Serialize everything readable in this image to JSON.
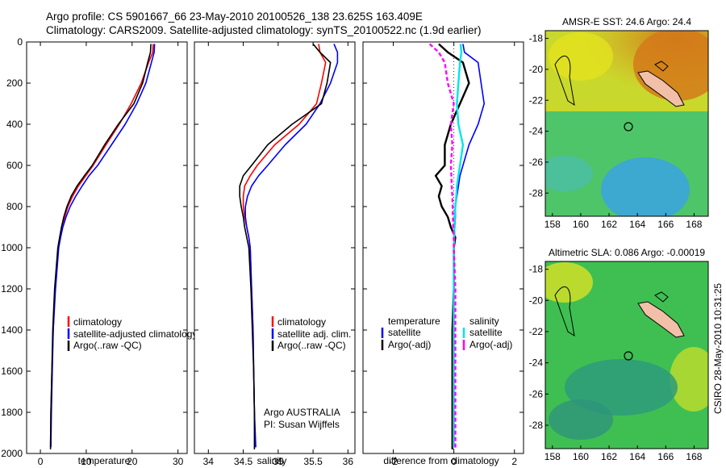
{
  "header": {
    "title_line1": "Argo profile: CS 5901667_66 23-May-2010 20100526_138 23.625S 163.409E",
    "title_line2": "Climatology: CARS2009. Satellite-adjusted climatology: synTS_20100522.nc (1.9d earlier)"
  },
  "colors": {
    "climatology": "#ff0000",
    "satellite": "#0000ff",
    "argo": "#000000",
    "sal_satellite": "#00e6e6",
    "sal_argo": "#ff00ff",
    "land": "#f2bfa8"
  },
  "chart_data": [
    {
      "type": "line",
      "xlabel": "temperature",
      "ylabel": "",
      "xlim": [
        -3,
        32
      ],
      "ylim": [
        2000,
        0
      ],
      "x_ticks": [
        0,
        10,
        20,
        30
      ],
      "y_ticks": [
        0,
        200,
        400,
        600,
        800,
        1000,
        1200,
        1400,
        1600,
        1800,
        2000
      ],
      "legend": [
        "climatology",
        "satellite-adjusted climatology",
        "Argo(..raw -QC)"
      ],
      "series": [
        {
          "name": "climatology",
          "color": "#ff0000",
          "x": [
            24.6,
            24.5,
            23.6,
            22.0,
            19.8,
            17.2,
            14.3,
            11.5,
            9.9,
            8.3,
            7.0,
            6.0,
            5.3,
            4.7,
            4.3,
            3.9,
            3.2,
            2.8,
            2.5,
            2.3,
            2.2
          ],
          "y": [
            10,
            50,
            100,
            200,
            300,
            400,
            500,
            600,
            650,
            700,
            750,
            800,
            850,
            900,
            950,
            1000,
            1200,
            1400,
            1600,
            1800,
            1970
          ]
        },
        {
          "name": "satellite-adjusted climatology",
          "color": "#0000ff",
          "x": [
            24.9,
            24.8,
            24.2,
            23.0,
            21.0,
            18.5,
            15.5,
            12.5,
            10.6,
            9.1,
            7.7,
            6.5,
            5.6,
            4.9,
            4.4,
            4.0,
            3.3,
            2.8,
            2.6,
            2.4,
            2.3
          ],
          "y": [
            10,
            50,
            100,
            200,
            300,
            400,
            500,
            600,
            650,
            700,
            750,
            800,
            850,
            900,
            950,
            1000,
            1200,
            1400,
            1600,
            1800,
            1970
          ]
        },
        {
          "name": "Argo(..raw -QC)",
          "color": "#000000",
          "x": [
            24.1,
            24.0,
            23.4,
            22.3,
            20.4,
            17.0,
            14.0,
            11.3,
            9.6,
            8.0,
            6.7,
            5.8,
            5.1,
            4.6,
            4.2,
            3.8,
            3.1,
            2.7,
            2.5,
            2.3,
            2.2
          ],
          "y": [
            10,
            50,
            100,
            200,
            300,
            400,
            500,
            600,
            650,
            700,
            750,
            800,
            850,
            900,
            950,
            1000,
            1200,
            1400,
            1600,
            1800,
            1980
          ]
        }
      ]
    },
    {
      "type": "line",
      "xlabel": "salinity",
      "ylabel": "",
      "xlim": [
        33.8,
        36.1
      ],
      "ylim": [
        2000,
        0
      ],
      "x_ticks": [
        34,
        34.5,
        35,
        35.5,
        36
      ],
      "legend": [
        "climatology",
        "satellite adj. clim.",
        "Argo(..raw -QC)"
      ],
      "annotation": [
        "Argo AUSTRALIA",
        "PI: Susan Wijffels"
      ],
      "series": [
        {
          "name": "climatology",
          "color": "#ff0000",
          "x": [
            35.58,
            35.6,
            35.68,
            35.62,
            35.55,
            35.3,
            34.95,
            34.7,
            34.6,
            34.52,
            34.5,
            34.5,
            34.52,
            34.55,
            34.58,
            34.6,
            34.62,
            34.64,
            34.65,
            34.66,
            34.67
          ],
          "y": [
            10,
            50,
            100,
            200,
            300,
            400,
            500,
            600,
            650,
            700,
            750,
            800,
            850,
            900,
            950,
            1000,
            1200,
            1400,
            1600,
            1800,
            1970
          ]
        },
        {
          "name": "satellite adj. clim.",
          "color": "#0000ff",
          "x": [
            35.8,
            35.85,
            35.85,
            35.75,
            35.6,
            35.4,
            35.1,
            34.85,
            34.72,
            34.62,
            34.56,
            34.53,
            34.53,
            34.55,
            34.58,
            34.6,
            34.62,
            34.64,
            34.65,
            34.66,
            34.68
          ],
          "y": [
            10,
            50,
            100,
            200,
            300,
            400,
            500,
            600,
            650,
            700,
            750,
            800,
            850,
            900,
            950,
            1000,
            1200,
            1400,
            1600,
            1800,
            1970
          ]
        },
        {
          "name": "Argo(..raw -QC)",
          "color": "#000000",
          "x": [
            35.5,
            35.6,
            35.75,
            35.7,
            35.62,
            35.2,
            34.85,
            34.62,
            34.5,
            34.45,
            34.45,
            34.47,
            34.5,
            34.52,
            34.55,
            34.58,
            34.61,
            34.63,
            34.65,
            34.66,
            34.66
          ],
          "y": [
            10,
            50,
            100,
            200,
            300,
            400,
            500,
            600,
            650,
            700,
            750,
            800,
            850,
            900,
            950,
            1000,
            1200,
            1400,
            1600,
            1800,
            1980
          ]
        }
      ]
    },
    {
      "type": "line",
      "xlabel": "difference from climatology",
      "ylabel": "",
      "xlim": [
        -3,
        2.3
      ],
      "ylim": [
        2000,
        0
      ],
      "x_ticks": [
        -2,
        0,
        2
      ],
      "legend_groups": [
        {
          "title": "temperature",
          "items": [
            "satellite",
            "Argo(-adj)"
          ]
        },
        {
          "title": "salinity",
          "items": [
            "satellite",
            "Argo(-adj)"
          ]
        }
      ],
      "series": [
        {
          "name": "temperature satellite",
          "color": "#0000ff",
          "x": [
            0.3,
            0.35,
            0.8,
            0.9,
            1.0,
            0.8,
            0.5,
            0.3,
            0.2,
            0.15,
            0.1,
            0.05,
            0.05,
            0.03,
            0.02,
            0.0,
            0.0,
            0.0,
            -0.02,
            -0.02,
            -0.03
          ],
          "y": [
            10,
            50,
            100,
            200,
            300,
            400,
            500,
            600,
            650,
            700,
            750,
            800,
            850,
            900,
            950,
            1000,
            1200,
            1400,
            1600,
            1800,
            1970
          ]
        },
        {
          "name": "temperature Argo(-adj)",
          "color": "#000000",
          "x": [
            -0.5,
            -0.2,
            0.3,
            0.5,
            0.2,
            -0.1,
            -0.3,
            -0.3,
            -0.6,
            -0.4,
            -0.5,
            -0.4,
            -0.2,
            -0.1,
            0.05,
            0.0,
            0.0,
            -0.05,
            -0.05,
            -0.05,
            -0.05
          ],
          "y": [
            10,
            50,
            100,
            200,
            300,
            400,
            500,
            600,
            650,
            700,
            750,
            800,
            850,
            900,
            950,
            1000,
            1200,
            1400,
            1600,
            1800,
            1980
          ]
        },
        {
          "name": "salinity satellite",
          "color": "#00e6e6",
          "x": [
            0.22,
            0.25,
            0.2,
            0.15,
            0.1,
            0.15,
            0.3,
            0.2,
            0.15,
            0.1,
            0.08,
            0.05,
            0.03,
            0.02,
            0.01,
            0.0,
            0.0,
            0.0,
            0.0,
            0.0,
            0.0
          ],
          "y": [
            10,
            50,
            100,
            200,
            300,
            400,
            500,
            600,
            650,
            700,
            750,
            800,
            850,
            900,
            950,
            1000,
            1200,
            1400,
            1600,
            1800,
            1970
          ]
        },
        {
          "name": "salinity Argo(-adj)",
          "color": "#ff00ff",
          "x": [
            -0.8,
            -0.5,
            -0.3,
            -0.2,
            0.0,
            -0.1,
            -0.05,
            -0.1,
            -0.08,
            -0.07,
            -0.05,
            -0.04,
            -0.03,
            -0.02,
            0.0,
            0.0,
            0.05,
            0.05,
            0.05,
            0.05,
            0.05
          ],
          "y": [
            10,
            50,
            100,
            200,
            300,
            400,
            500,
            600,
            650,
            700,
            750,
            800,
            850,
            900,
            950,
            1000,
            1200,
            1400,
            1600,
            1800,
            1980
          ]
        }
      ]
    },
    {
      "type": "heatmap",
      "title": "AMSR-E SST: 24.6  Argo: 24.4",
      "xlim": [
        157.5,
        169
      ],
      "ylim": [
        -29.5,
        -17.5
      ],
      "x_ticks": [
        158,
        160,
        162,
        164,
        166,
        168
      ],
      "y_ticks": [
        -18,
        -20,
        -22,
        -24,
        -26,
        -28
      ],
      "profile_location": {
        "lon": 163.409,
        "lat": -23.625
      }
    },
    {
      "type": "heatmap",
      "title": "Altimetric SLA: 0.086  Argo: -0.00019",
      "xlim": [
        157.5,
        169
      ],
      "ylim": [
        -29.5,
        -17.5
      ],
      "x_ticks": [
        158,
        160,
        162,
        164,
        166,
        168
      ],
      "y_ticks": [
        -18,
        -20,
        -22,
        -24,
        -26,
        -28
      ],
      "profile_location": {
        "lon": 163.409,
        "lat": -23.625
      }
    }
  ],
  "side_label": "CSIRO 28-May-2010 10:31:25"
}
